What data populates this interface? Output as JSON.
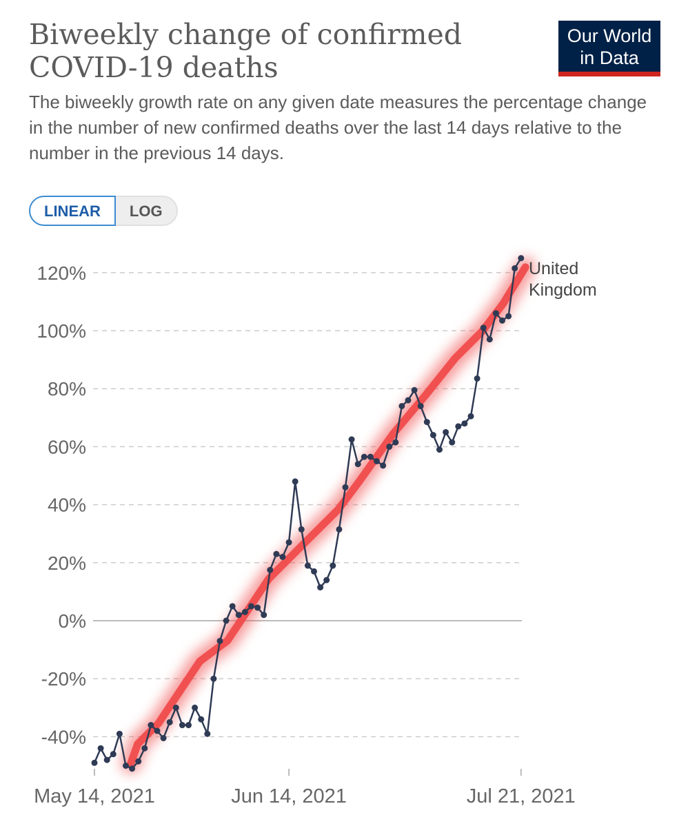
{
  "header": {
    "title": "Biweekly change of confirmed COVID-19 deaths",
    "subtitle": "The biweekly growth rate on any given date measures the percentage change in the number of new confirmed deaths over the last 14 days relative to the number in the previous 14 days.",
    "logo_line1": "Our World",
    "logo_line2": "in Data"
  },
  "toggle": {
    "linear": "LINEAR",
    "log": "LOG",
    "selected": "LINEAR"
  },
  "colors": {
    "series": "#2f3b55",
    "highlight": "#f0494a",
    "logo_bg": "#002147",
    "logo_bar": "#ce261e"
  },
  "chart_data": {
    "type": "line",
    "title": "Biweekly change of confirmed COVID-19 deaths",
    "xlabel": "",
    "ylabel": "",
    "x_start_date": "2021-05-14",
    "x_ticks": [
      {
        "day": 0,
        "label": "May 14, 2021"
      },
      {
        "day": 31,
        "label": "Jun 14, 2021"
      },
      {
        "day": 68,
        "label": "Jul 21, 2021"
      }
    ],
    "y_ticks": [
      {
        "value": -40,
        "label": "-40%"
      },
      {
        "value": -20,
        "label": "-20%"
      },
      {
        "value": 0,
        "label": "0%"
      },
      {
        "value": 20,
        "label": "20%"
      },
      {
        "value": 40,
        "label": "40%"
      },
      {
        "value": 60,
        "label": "60%"
      },
      {
        "value": 80,
        "label": "80%"
      },
      {
        "value": 100,
        "label": "100%"
      },
      {
        "value": 120,
        "label": "120%"
      }
    ],
    "ylim": [
      -50,
      125
    ],
    "grid": "horizontal dashed",
    "series": [
      {
        "name": "United Kingdom",
        "label_line1": "United",
        "label_line2": "Kingdom",
        "values": [
          -49,
          -44,
          -48,
          -46,
          -39,
          -50,
          -51,
          -48.5,
          -44,
          -36,
          -38,
          -40.5,
          -35,
          -30,
          -36,
          -36,
          -30,
          -34,
          -39,
          -20,
          -7,
          0,
          5,
          2,
          3,
          5,
          4.5,
          2,
          17.5,
          23,
          22,
          27,
          48,
          31.5,
          19,
          17,
          11.5,
          14,
          19,
          31.5,
          46,
          62.5,
          54,
          56.5,
          56.5,
          55,
          53.5,
          60,
          61.5,
          74,
          76,
          79.5,
          74,
          68.5,
          64,
          59,
          65,
          61.5,
          67,
          68,
          70.5,
          83.5,
          101,
          97,
          106,
          103.5,
          105,
          121.5,
          125
        ]
      }
    ],
    "annotation_trend": {
      "description": "hand-drawn red highlight line",
      "points": [
        [
          5.8,
          -49.2
        ],
        [
          6.9,
          -42.5
        ],
        [
          10.2,
          -35.4
        ],
        [
          16.8,
          -14
        ],
        [
          21.2,
          -6.9
        ],
        [
          27.8,
          14.5
        ],
        [
          33.3,
          26.4
        ],
        [
          38.8,
          38.2
        ],
        [
          42.1,
          47.7
        ],
        [
          47.6,
          64.4
        ],
        [
          53.1,
          78.6
        ],
        [
          57.5,
          90.5
        ],
        [
          61.9,
          100
        ],
        [
          65.2,
          109.5
        ],
        [
          68.7,
          121.9
        ]
      ]
    }
  }
}
